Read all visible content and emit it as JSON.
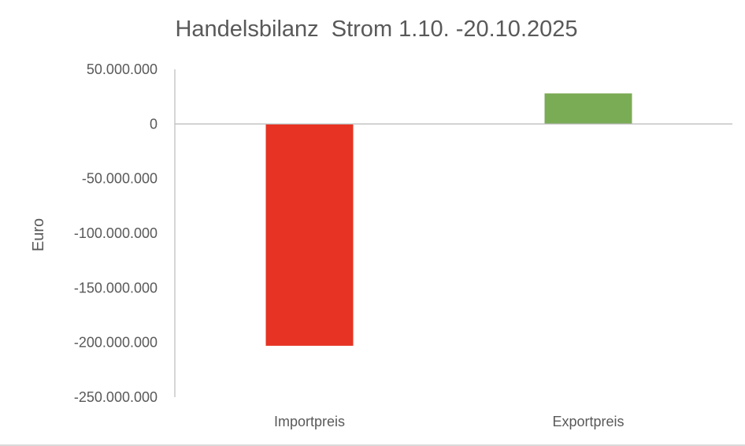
{
  "chart_data": {
    "type": "bar",
    "title": "Handelsbilanz  Strom 1.10. -20.10.2025",
    "ylabel": "Euro",
    "xlabel": "",
    "categories": [
      "Importpreis",
      "Exportpreis"
    ],
    "values": [
      -203000000,
      28000000
    ],
    "colors": [
      "#e63323",
      "#7aab55"
    ],
    "ylim": [
      -250000000,
      50000000
    ],
    "yticks": [
      50000000,
      0,
      -50000000,
      -100000000,
      -150000000,
      -200000000,
      -250000000
    ],
    "ytick_labels": [
      "50.000.000",
      "0",
      "-50.000.000",
      "-100.000.000",
      "-150.000.000",
      "-200.000.000",
      "-250.000.000"
    ],
    "grid": false,
    "legend": "none"
  }
}
